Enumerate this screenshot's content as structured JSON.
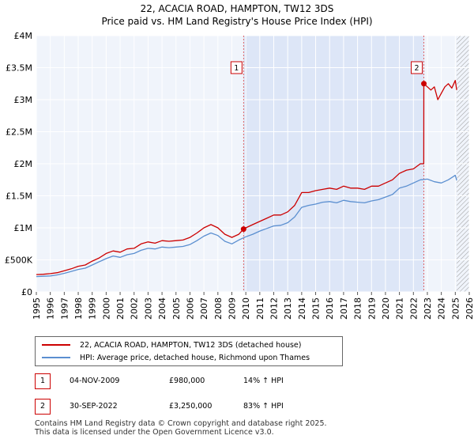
{
  "chart_data": {
    "type": "line",
    "title": "22, ACACIA ROAD, HAMPTON, TW12 3DS",
    "subtitle": "Price paid vs. HM Land Registry's House Price Index (HPI)",
    "xlim": [
      1995,
      2026
    ],
    "ylim": [
      0,
      4000000
    ],
    "x_ticks": [
      "1995",
      "1996",
      "1997",
      "1998",
      "1999",
      "2000",
      "2001",
      "2002",
      "2003",
      "2004",
      "2005",
      "2006",
      "2007",
      "2008",
      "2009",
      "2010",
      "2011",
      "2012",
      "2013",
      "2014",
      "2015",
      "2016",
      "2017",
      "2018",
      "2019",
      "2020",
      "2021",
      "2022",
      "2023",
      "2024",
      "2025",
      "2026"
    ],
    "y_ticks": [
      {
        "value": 0,
        "label": "£0"
      },
      {
        "value": 500000,
        "label": "£500K"
      },
      {
        "value": 1000000,
        "label": "£1M"
      },
      {
        "value": 1500000,
        "label": "£1.5M"
      },
      {
        "value": 2000000,
        "label": "£2M"
      },
      {
        "value": 2500000,
        "label": "£2.5M"
      },
      {
        "value": 3000000,
        "label": "£3M"
      },
      {
        "value": 3500000,
        "label": "£3.5M"
      },
      {
        "value": 4000000,
        "label": "£4M"
      }
    ],
    "grid": true,
    "shaded_region": {
      "from": 2009.84,
      "to": 2022.75,
      "color": "#dde6f7"
    },
    "hatched_region": {
      "from": 2025.1,
      "to": 2026
    },
    "series": [
      {
        "name": "22, ACACIA ROAD, HAMPTON, TW12 3DS (detached house)",
        "color": "#cc0000",
        "x": [
          1995.0,
          1995.5,
          1996.0,
          1996.5,
          1997.0,
          1997.5,
          1998.0,
          1998.5,
          1999.0,
          1999.5,
          2000.0,
          2000.5,
          2001.0,
          2001.5,
          2002.0,
          2002.5,
          2003.0,
          2003.5,
          2004.0,
          2004.5,
          2005.0,
          2005.5,
          2006.0,
          2006.5,
          2007.0,
          2007.5,
          2008.0,
          2008.5,
          2009.0,
          2009.5,
          2009.84,
          2010.0,
          2010.5,
          2011.0,
          2011.5,
          2012.0,
          2012.5,
          2013.0,
          2013.5,
          2014.0,
          2014.5,
          2015.0,
          2015.5,
          2016.0,
          2016.5,
          2017.0,
          2017.5,
          2018.0,
          2018.5,
          2019.0,
          2019.5,
          2020.0,
          2020.5,
          2021.0,
          2021.5,
          2022.0,
          2022.5,
          2022.74,
          2022.75,
          2023.0,
          2023.25,
          2023.5,
          2023.75,
          2024.0,
          2024.25,
          2024.5,
          2024.75,
          2025.0,
          2025.1
        ],
        "values": [
          270000,
          275000,
          285000,
          300000,
          330000,
          360000,
          400000,
          420000,
          480000,
          530000,
          600000,
          640000,
          620000,
          670000,
          680000,
          750000,
          780000,
          760000,
          800000,
          790000,
          800000,
          810000,
          850000,
          920000,
          1000000,
          1050000,
          1000000,
          900000,
          850000,
          900000,
          980000,
          1000000,
          1050000,
          1100000,
          1150000,
          1200000,
          1200000,
          1250000,
          1350000,
          1550000,
          1550000,
          1580000,
          1600000,
          1620000,
          1600000,
          1650000,
          1620000,
          1620000,
          1600000,
          1650000,
          1650000,
          1700000,
          1750000,
          1850000,
          1900000,
          1920000,
          2000000,
          2000000,
          3250000,
          3200000,
          3150000,
          3200000,
          3000000,
          3100000,
          3200000,
          3250000,
          3180000,
          3300000,
          3150000
        ]
      },
      {
        "name": "HPI: Average price, detached house, Richmond upon Thames",
        "color": "#5b8fd0",
        "x": [
          1995.0,
          1995.5,
          1996.0,
          1996.5,
          1997.0,
          1997.5,
          1998.0,
          1998.5,
          1999.0,
          1999.5,
          2000.0,
          2000.5,
          2001.0,
          2001.5,
          2002.0,
          2002.5,
          2003.0,
          2003.5,
          2004.0,
          2004.5,
          2005.0,
          2005.5,
          2006.0,
          2006.5,
          2007.0,
          2007.5,
          2008.0,
          2008.5,
          2009.0,
          2009.5,
          2010.0,
          2010.5,
          2011.0,
          2011.5,
          2012.0,
          2012.5,
          2013.0,
          2013.5,
          2014.0,
          2014.5,
          2015.0,
          2015.5,
          2016.0,
          2016.5,
          2017.0,
          2017.5,
          2018.0,
          2018.5,
          2019.0,
          2019.5,
          2020.0,
          2020.5,
          2021.0,
          2021.5,
          2022.0,
          2022.5,
          2023.0,
          2023.5,
          2024.0,
          2024.5,
          2025.0,
          2025.1
        ],
        "values": [
          240000,
          245000,
          250000,
          265000,
          290000,
          320000,
          350000,
          370000,
          420000,
          470000,
          520000,
          560000,
          540000,
          580000,
          600000,
          650000,
          680000,
          670000,
          700000,
          690000,
          700000,
          710000,
          740000,
          800000,
          870000,
          920000,
          880000,
          790000,
          750000,
          810000,
          860000,
          900000,
          950000,
          990000,
          1030000,
          1040000,
          1080000,
          1170000,
          1320000,
          1350000,
          1370000,
          1400000,
          1410000,
          1390000,
          1430000,
          1410000,
          1400000,
          1390000,
          1420000,
          1440000,
          1480000,
          1520000,
          1620000,
          1650000,
          1700000,
          1750000,
          1760000,
          1720000,
          1700000,
          1750000,
          1820000,
          1740000
        ]
      }
    ],
    "annotations": [
      {
        "label": "1",
        "x": 2009.84,
        "value": 980000
      },
      {
        "label": "2",
        "x": 2022.75,
        "value": 3250000
      }
    ]
  },
  "legend": {
    "items": [
      {
        "label": "22, ACACIA ROAD, HAMPTON, TW12 3DS (detached house)",
        "color": "#cc0000"
      },
      {
        "label": "HPI: Average price, detached house, Richmond upon Thames",
        "color": "#5b8fd0"
      }
    ]
  },
  "transactions": [
    {
      "num": "1",
      "date": "04-NOV-2009",
      "price": "£980,000",
      "hpi": "14% ↑ HPI"
    },
    {
      "num": "2",
      "date": "30-SEP-2022",
      "price": "£3,250,000",
      "hpi": "83% ↑ HPI"
    }
  ],
  "footer": {
    "line1": "Contains HM Land Registry data © Crown copyright and database right 2025.",
    "line2": "This data is licensed under the Open Government Licence v3.0."
  }
}
